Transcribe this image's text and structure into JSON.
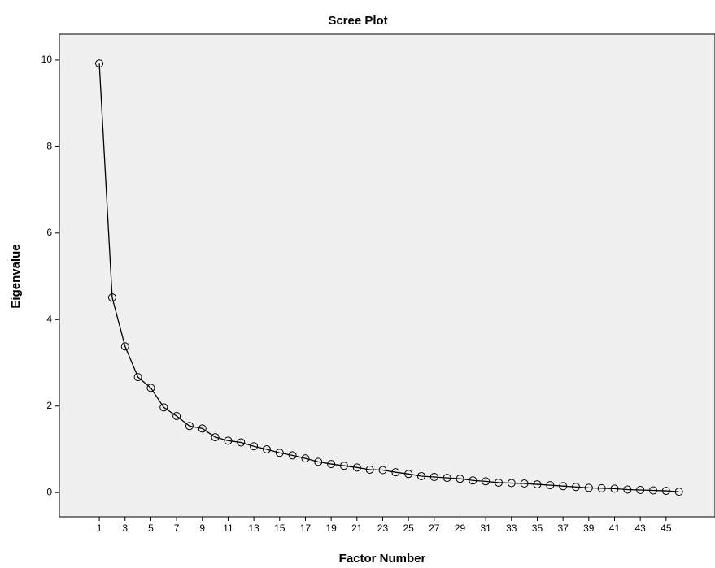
{
  "chart_data": {
    "type": "line",
    "title": "Scree Plot",
    "x_label": "Factor Number",
    "y_label": "Eigenvalue",
    "x": [
      1,
      2,
      3,
      4,
      5,
      6,
      7,
      8,
      9,
      10,
      11,
      12,
      13,
      14,
      15,
      16,
      17,
      18,
      19,
      20,
      21,
      22,
      23,
      24,
      25,
      26,
      27,
      28,
      29,
      30,
      31,
      32,
      33,
      34,
      35,
      36,
      37,
      38,
      39,
      40,
      41,
      42,
      43,
      44,
      45,
      46
    ],
    "series": [
      {
        "name": "Eigenvalue",
        "color": "#000000",
        "values": [
          9.92,
          4.51,
          3.38,
          2.67,
          2.42,
          1.97,
          1.77,
          1.54,
          1.48,
          1.28,
          1.2,
          1.16,
          1.07,
          1.0,
          0.92,
          0.86,
          0.79,
          0.71,
          0.66,
          0.62,
          0.58,
          0.53,
          0.52,
          0.47,
          0.43,
          0.38,
          0.36,
          0.34,
          0.32,
          0.28,
          0.26,
          0.23,
          0.22,
          0.21,
          0.19,
          0.17,
          0.15,
          0.13,
          0.11,
          0.1,
          0.09,
          0.07,
          0.06,
          0.05,
          0.04,
          0.02
        ]
      }
    ],
    "xlim": [
      -2.1,
      48.8
    ],
    "xticks": [
      1,
      3,
      5,
      7,
      9,
      11,
      13,
      15,
      17,
      19,
      21,
      23,
      25,
      27,
      29,
      31,
      33,
      35,
      37,
      39,
      41,
      43,
      45
    ],
    "ylim": [
      -0.56,
      10.6
    ],
    "yticks": [
      0,
      2,
      4,
      6,
      8,
      10
    ]
  }
}
